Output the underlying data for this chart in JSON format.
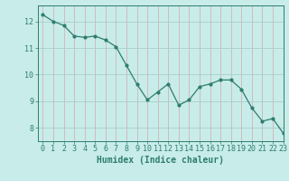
{
  "x": [
    0,
    1,
    2,
    3,
    4,
    5,
    6,
    7,
    8,
    9,
    10,
    11,
    12,
    13,
    14,
    15,
    16,
    17,
    18,
    19,
    20,
    21,
    22,
    23
  ],
  "y": [
    12.25,
    12.0,
    11.85,
    11.45,
    11.4,
    11.45,
    11.3,
    11.05,
    10.35,
    9.65,
    9.05,
    9.35,
    9.65,
    8.85,
    9.05,
    9.55,
    9.65,
    9.8,
    9.8,
    9.45,
    8.75,
    8.25,
    8.35,
    7.8
  ],
  "line_color": "#2e7d6e",
  "marker": "o",
  "marker_size": 2,
  "bg_color": "#c8ecea",
  "vgrid_color": "#d4a8a8",
  "hgrid_color": "#a8ceca",
  "xlabel": "Humidex (Indice chaleur)",
  "xlim": [
    -0.5,
    23
  ],
  "ylim": [
    7.5,
    12.6
  ],
  "yticks": [
    8,
    9,
    10,
    11,
    12
  ],
  "xticks": [
    0,
    1,
    2,
    3,
    4,
    5,
    6,
    7,
    8,
    9,
    10,
    11,
    12,
    13,
    14,
    15,
    16,
    17,
    18,
    19,
    20,
    21,
    22,
    23
  ],
  "tick_color": "#2e7d6e",
  "label_color": "#2e7d6e",
  "font_size": 6,
  "xlabel_fontsize": 7
}
